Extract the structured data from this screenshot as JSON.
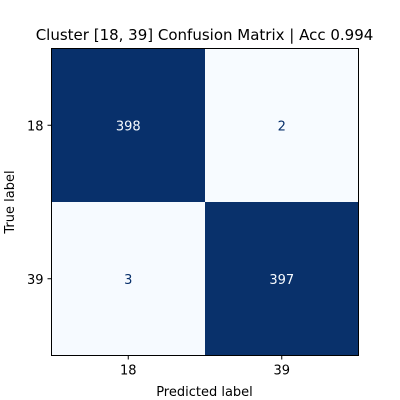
{
  "chart_data": {
    "type": "heatmap",
    "title": "Cluster [18, 39] Confusion Matrix | Acc 0.994",
    "xlabel": "Predicted label",
    "ylabel": "True label",
    "x_categories": [
      "18",
      "39"
    ],
    "y_categories": [
      "18",
      "39"
    ],
    "values": [
      [
        398,
        2
      ],
      [
        3,
        397
      ]
    ],
    "colormap": "Blues",
    "vmin": 2,
    "vmax": 398,
    "colors": {
      "high": "#08306b",
      "low": "#f7fbff",
      "text_on_dark": "#f7fbff",
      "text_on_light": "#08306b"
    }
  }
}
